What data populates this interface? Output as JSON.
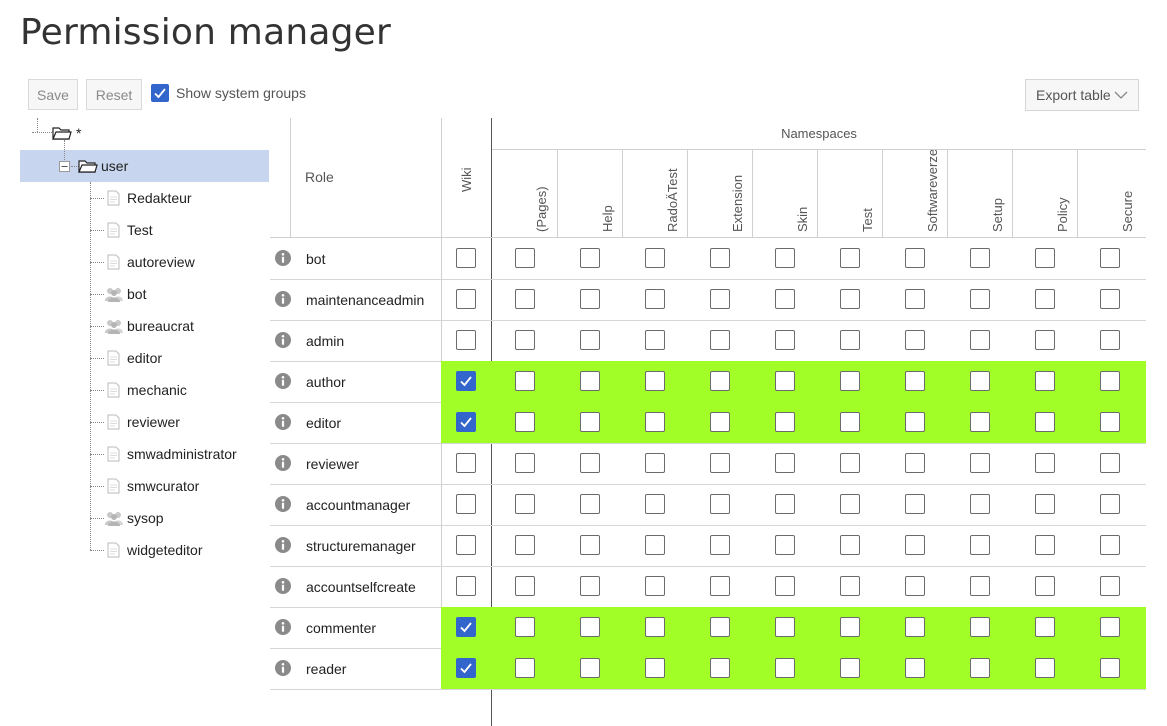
{
  "page": {
    "title": "Permission manager"
  },
  "toolbar": {
    "save_label": "Save",
    "reset_label": "Reset",
    "show_system_groups_label": "Show system groups",
    "show_system_groups_checked": true,
    "export_label": "Export table"
  },
  "tree": {
    "root": {
      "label": "*",
      "icon": "folder-icon"
    },
    "group": {
      "label": "user",
      "icon": "folder-icon",
      "selected": true
    },
    "children": [
      {
        "label": "Redakteur",
        "icon": "document-icon"
      },
      {
        "label": "Test",
        "icon": "document-icon"
      },
      {
        "label": "autoreview",
        "icon": "document-icon"
      },
      {
        "label": "bot",
        "icon": "group-icon"
      },
      {
        "label": "bureaucrat",
        "icon": "group-icon"
      },
      {
        "label": "editor",
        "icon": "document-icon"
      },
      {
        "label": "mechanic",
        "icon": "document-icon"
      },
      {
        "label": "reviewer",
        "icon": "document-icon"
      },
      {
        "label": "smwadministrator",
        "icon": "document-icon"
      },
      {
        "label": "smwcurator",
        "icon": "document-icon"
      },
      {
        "label": "sysop",
        "icon": "group-icon"
      },
      {
        "label": "widgeteditor",
        "icon": "document-icon"
      }
    ]
  },
  "grid": {
    "role_header": "Role",
    "wiki_header": "Wiki",
    "namespaces_header": "Namespaces",
    "namespaces": [
      "(Pages)",
      "Help",
      "RadoÄTest",
      "Extension",
      "Skin",
      "Test",
      "Softwareverzeichnis",
      "Setup",
      "Policy",
      "Secure"
    ],
    "highlight_color": "#a1ff27",
    "checked_color": "#3366cc",
    "rows": [
      {
        "role": "bot",
        "wiki": false
      },
      {
        "role": "maintenanceadmin",
        "wiki": false
      },
      {
        "role": "admin",
        "wiki": false
      },
      {
        "role": "author",
        "wiki": true
      },
      {
        "role": "editor",
        "wiki": true
      },
      {
        "role": "reviewer",
        "wiki": false
      },
      {
        "role": "accountmanager",
        "wiki": false
      },
      {
        "role": "structuremanager",
        "wiki": false
      },
      {
        "role": "accountselfcreate",
        "wiki": false
      },
      {
        "role": "commenter",
        "wiki": true
      },
      {
        "role": "reader",
        "wiki": true
      }
    ]
  }
}
